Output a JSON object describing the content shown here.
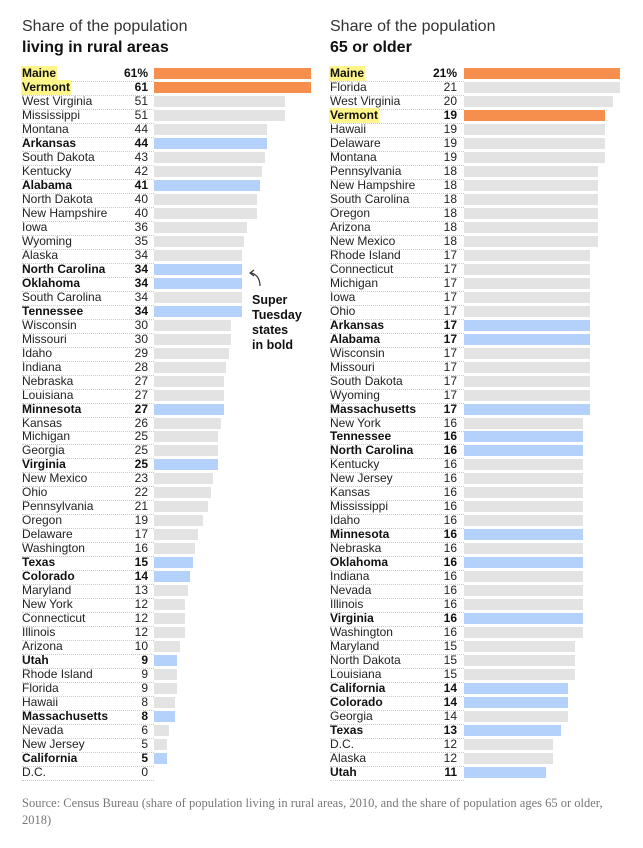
{
  "chart_data": [
    {
      "type": "bar",
      "title": "Share of the population",
      "subtitle": "living in rural areas",
      "value_suffix_first": "%",
      "categories": [
        "Maine",
        "Vermont",
        "West Virginia",
        "Mississippi",
        "Montana",
        "Arkansas",
        "South Dakota",
        "Kentucky",
        "Alabama",
        "North Dakota",
        "New Hampshire",
        "Iowa",
        "Wyoming",
        "Alaska",
        "North Carolina",
        "Oklahoma",
        "South Carolina",
        "Tennessee",
        "Wisconsin",
        "Missouri",
        "Idaho",
        "Indiana",
        "Nebraska",
        "Louisiana",
        "Minnesota",
        "Kansas",
        "Michigan",
        "Georgia",
        "Virginia",
        "New Mexico",
        "Ohio",
        "Pennsylvania",
        "Oregon",
        "Delaware",
        "Washington",
        "Texas",
        "Colorado",
        "Maryland",
        "New York",
        "Connecticut",
        "Illinois",
        "Arizona",
        "Utah",
        "Rhode Island",
        "Florida",
        "Hawaii",
        "Massachusetts",
        "Nevada",
        "New Jersey",
        "California",
        "D.C."
      ],
      "values": [
        61,
        61,
        51,
        51,
        44,
        44,
        43,
        42,
        41,
        40,
        40,
        36,
        35,
        34,
        34,
        34,
        34,
        34,
        30,
        30,
        29,
        28,
        27,
        27,
        27,
        26,
        25,
        25,
        25,
        23,
        22,
        21,
        19,
        17,
        16,
        15,
        14,
        13,
        12,
        12,
        12,
        10,
        9,
        9,
        9,
        8,
        8,
        6,
        5,
        5,
        0
      ],
      "xlim": [
        0,
        61
      ]
    },
    {
      "type": "bar",
      "title": "Share of the population",
      "subtitle": "65 or older",
      "value_suffix_first": "%",
      "categories": [
        "Maine",
        "Florida",
        "West Virginia",
        "Vermont",
        "Hawaii",
        "Delaware",
        "Montana",
        "Pennsylvania",
        "New Hampshire",
        "South Carolina",
        "Oregon",
        "Arizona",
        "New Mexico",
        "Rhode Island",
        "Connecticut",
        "Michigan",
        "Iowa",
        "Ohio",
        "Arkansas",
        "Alabama",
        "Wisconsin",
        "Missouri",
        "South Dakota",
        "Wyoming",
        "Massachusetts",
        "New York",
        "Tennessee",
        "North Carolina",
        "Kentucky",
        "New Jersey",
        "Kansas",
        "Mississippi",
        "Idaho",
        "Minnesota",
        "Nebraska",
        "Oklahoma",
        "Indiana",
        "Nevada",
        "Illinois",
        "Virginia",
        "Washington",
        "Maryland",
        "North Dakota",
        "Louisiana",
        "California",
        "Colorado",
        "Georgia",
        "Texas",
        "D.C.",
        "Alaska",
        "Utah"
      ],
      "values": [
        21,
        21,
        20,
        19,
        19,
        19,
        19,
        18,
        18,
        18,
        18,
        18,
        18,
        17,
        17,
        17,
        17,
        17,
        17,
        17,
        17,
        17,
        17,
        17,
        17,
        16,
        16,
        16,
        16,
        16,
        16,
        16,
        16,
        16,
        16,
        16,
        16,
        16,
        16,
        16,
        16,
        15,
        15,
        15,
        14,
        14,
        14,
        13,
        12,
        12,
        11
      ],
      "xlim": [
        0,
        21
      ]
    }
  ],
  "super_tuesday_states": [
    "Alabama",
    "Arkansas",
    "California",
    "Colorado",
    "Maine",
    "Massachusetts",
    "Minnesota",
    "North Carolina",
    "Oklahoma",
    "Tennessee",
    "Texas",
    "Utah",
    "Vermont",
    "Virginia"
  ],
  "highlight_states": [
    "Maine",
    "Vermont"
  ],
  "colors": {
    "gray": "#e3e3e3",
    "blue": "#b3d1fb",
    "orange": "#f68f4d",
    "highlight": "#fff58a"
  },
  "annotation": "Super\nTuesday\nstates\nin bold",
  "source": "Source: Census Bureau (share of population living in rural areas, 2010, and the share of population ages 65 or older, 2018)"
}
